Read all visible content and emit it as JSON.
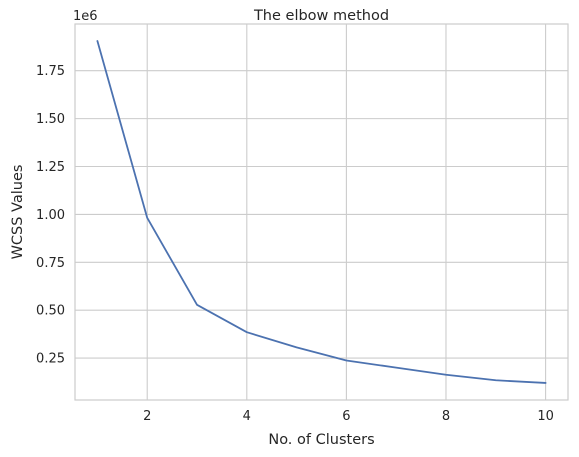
{
  "chart_data": {
    "type": "line",
    "title": "The elbow method",
    "xlabel": "No. of Clusters",
    "ylabel": "WCSS Values",
    "offset_label": "1e6",
    "x": [
      1,
      2,
      3,
      4,
      5,
      6,
      7,
      8,
      9,
      10
    ],
    "series": [
      {
        "values": [
          1.905,
          0.982,
          0.528,
          0.385,
          0.306,
          0.237,
          0.2,
          0.163,
          0.134,
          0.12
        ]
      }
    ],
    "xlim": [
      0.55,
      10.45
    ],
    "ylim": [
      0.031,
      1.994
    ],
    "xticks": [
      2,
      4,
      6,
      8,
      10
    ],
    "xtick_labels": [
      "2",
      "4",
      "6",
      "8",
      "10"
    ],
    "yticks": [
      0.25,
      0.5,
      0.75,
      1.0,
      1.25,
      1.5,
      1.75
    ],
    "ytick_labels": [
      "0.25",
      "0.50",
      "0.75",
      "1.00",
      "1.25",
      "1.50",
      "1.75"
    ],
    "grid": true,
    "legend": "none",
    "line_color": "#4c72b0",
    "grid_color": "#cccccc",
    "background_color": "#ffffff"
  }
}
